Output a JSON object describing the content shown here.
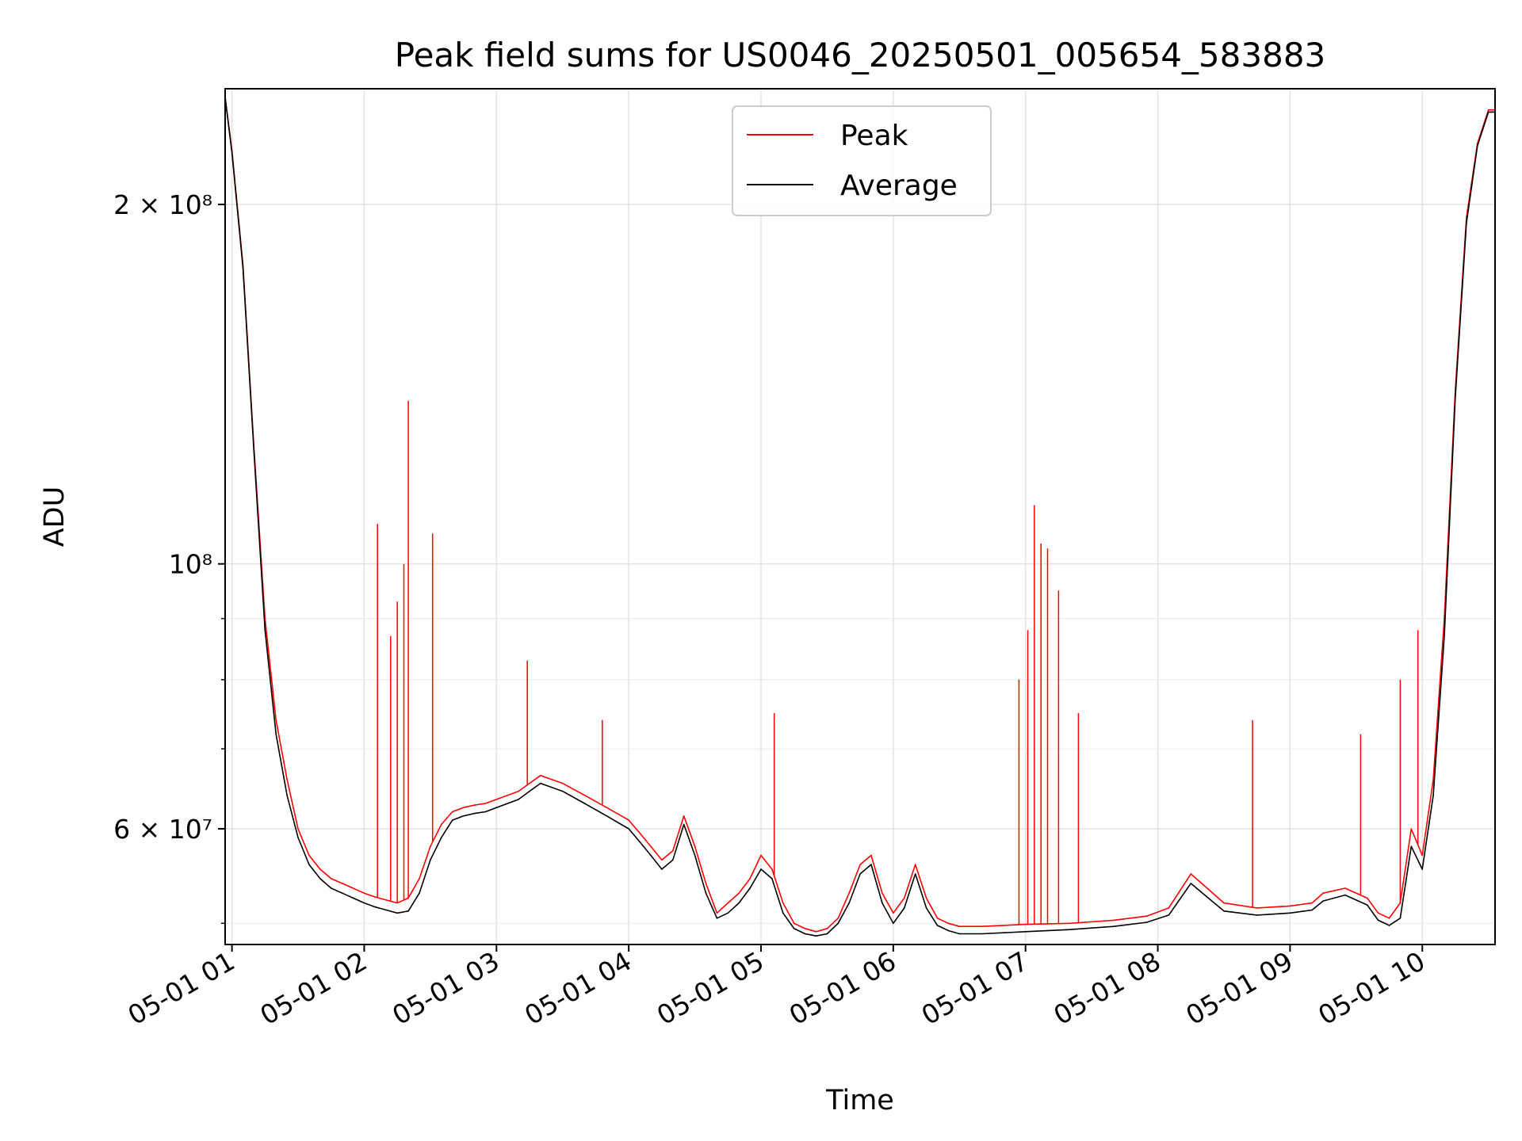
{
  "chart_data": {
    "type": "line",
    "title": "Peak field sums for US0046_20250501_005654_583883",
    "xlabel": "Time",
    "ylabel": "ADU",
    "yscale": "log",
    "ylim": [
      48000000,
      250000000
    ],
    "xlim": [
      "2025-05-01 00:56:54",
      "2025-05-01 10:33:00"
    ],
    "grid": true,
    "legend_position": "top-center",
    "x_ticks": [
      "05-01 01",
      "05-01 02",
      "05-01 03",
      "05-01 04",
      "05-01 05",
      "05-01 06",
      "05-01 07",
      "05-01 08",
      "05-01 09",
      "05-01 10"
    ],
    "y_ticks": [
      {
        "value": 200000000,
        "label": "2 × 10⁸"
      },
      {
        "value": 100000000,
        "label": "10⁸"
      },
      {
        "value": 60000000,
        "label": "6 × 10⁷"
      }
    ],
    "series": [
      {
        "name": "Peak",
        "color": "#ff0000",
        "x": [
          "2025-05-01 00:57",
          "2025-05-01 01:00",
          "2025-05-01 01:05",
          "2025-05-01 01:10",
          "2025-05-01 01:15",
          "2025-05-01 01:20",
          "2025-05-01 01:25",
          "2025-05-01 01:30",
          "2025-05-01 01:35",
          "2025-05-01 01:40",
          "2025-05-01 01:45",
          "2025-05-01 01:50",
          "2025-05-01 01:55",
          "2025-05-01 02:00",
          "2025-05-01 02:05",
          "2025-05-01 02:10",
          "2025-05-01 02:15",
          "2025-05-01 02:20",
          "2025-05-01 02:25",
          "2025-05-01 02:30",
          "2025-05-01 02:35",
          "2025-05-01 02:40",
          "2025-05-01 02:45",
          "2025-05-01 02:50",
          "2025-05-01 02:55",
          "2025-05-01 03:00",
          "2025-05-01 03:10",
          "2025-05-01 03:15",
          "2025-05-01 03:20",
          "2025-05-01 03:30",
          "2025-05-01 03:40",
          "2025-05-01 03:50",
          "2025-05-01 04:00",
          "2025-05-01 04:05",
          "2025-05-01 04:10",
          "2025-05-01 04:15",
          "2025-05-01 04:20",
          "2025-05-01 04:25",
          "2025-05-01 04:30",
          "2025-05-01 04:35",
          "2025-05-01 04:40",
          "2025-05-01 04:45",
          "2025-05-01 04:50",
          "2025-05-01 04:55",
          "2025-05-01 05:00",
          "2025-05-01 05:05",
          "2025-05-01 05:10",
          "2025-05-01 05:15",
          "2025-05-01 05:20",
          "2025-05-01 05:25",
          "2025-05-01 05:30",
          "2025-05-01 05:35",
          "2025-05-01 05:40",
          "2025-05-01 05:45",
          "2025-05-01 05:50",
          "2025-05-01 05:55",
          "2025-05-01 06:00",
          "2025-05-01 06:05",
          "2025-05-01 06:10",
          "2025-05-01 06:15",
          "2025-05-01 06:20",
          "2025-05-01 06:25",
          "2025-05-01 06:30",
          "2025-05-01 06:40",
          "2025-05-01 06:50",
          "2025-05-01 07:00",
          "2025-05-01 07:20",
          "2025-05-01 07:40",
          "2025-05-01 07:55",
          "2025-05-01 08:05",
          "2025-05-01 08:15",
          "2025-05-01 08:30",
          "2025-05-01 08:45",
          "2025-05-01 09:00",
          "2025-05-01 09:10",
          "2025-05-01 09:15",
          "2025-05-01 09:25",
          "2025-05-01 09:35",
          "2025-05-01 09:40",
          "2025-05-01 09:45",
          "2025-05-01 09:50",
          "2025-05-01 09:55",
          "2025-05-01 10:00",
          "2025-05-01 10:05",
          "2025-05-01 10:10",
          "2025-05-01 10:15",
          "2025-05-01 10:20",
          "2025-05-01 10:25",
          "2025-05-01 10:30",
          "2025-05-01 10:33"
        ],
        "values": [
          245000000,
          222000000,
          178000000,
          125000000,
          90000000,
          74000000,
          66000000,
          60000000,
          57000000,
          55500000,
          54500000,
          54000000,
          53500000,
          53000000,
          52600000,
          52300000,
          52000000,
          52500000,
          54500000,
          58000000,
          60500000,
          62000000,
          62500000,
          62800000,
          63000000,
          63500000,
          64500000,
          65500000,
          66500000,
          65500000,
          64000000,
          62500000,
          61000000,
          59500000,
          58000000,
          56500000,
          57500000,
          61500000,
          58000000,
          54000000,
          51000000,
          52000000,
          53000000,
          54500000,
          57000000,
          55500000,
          52000000,
          50000000,
          49500000,
          49200000,
          49500000,
          50500000,
          53000000,
          56000000,
          57000000,
          53000000,
          51000000,
          52500000,
          56000000,
          52500000,
          50500000,
          50000000,
          49700000,
          49700000,
          49800000,
          49900000,
          50000000,
          50300000,
          50700000,
          51500000,
          55000000,
          52000000,
          51500000,
          51700000,
          52000000,
          53000000,
          53500000,
          52500000,
          51000000,
          50500000,
          52000000,
          60000000,
          57000000,
          66000000,
          90000000,
          140000000,
          195000000,
          225000000,
          240000000,
          240000000
        ],
        "spikes": [
          [
            "2025-05-01 02:06",
            108000000
          ],
          [
            "2025-05-01 02:12",
            87000000
          ],
          [
            "2025-05-01 02:15",
            93000000
          ],
          [
            "2025-05-01 02:18",
            100000000
          ],
          [
            "2025-05-01 02:20",
            137000000
          ],
          [
            "2025-05-01 02:31",
            106000000
          ],
          [
            "2025-05-01 03:14",
            83000000
          ],
          [
            "2025-05-01 03:48",
            74000000
          ],
          [
            "2025-05-01 05:06",
            75000000
          ],
          [
            "2025-05-01 06:57",
            80000000
          ],
          [
            "2025-05-01 07:01",
            88000000
          ],
          [
            "2025-05-01 07:04",
            112000000
          ],
          [
            "2025-05-01 07:07",
            104000000
          ],
          [
            "2025-05-01 07:10",
            103000000
          ],
          [
            "2025-05-01 07:15",
            95000000
          ],
          [
            "2025-05-01 07:24",
            75000000
          ],
          [
            "2025-05-01 08:43",
            74000000
          ],
          [
            "2025-05-01 09:32",
            72000000
          ],
          [
            "2025-05-01 09:50",
            80000000
          ],
          [
            "2025-05-01 09:58",
            88000000
          ]
        ]
      },
      {
        "name": "Average",
        "color": "#000000",
        "x": [
          "2025-05-01 00:57",
          "2025-05-01 01:00",
          "2025-05-01 01:05",
          "2025-05-01 01:10",
          "2025-05-01 01:15",
          "2025-05-01 01:20",
          "2025-05-01 01:25",
          "2025-05-01 01:30",
          "2025-05-01 01:35",
          "2025-05-01 01:40",
          "2025-05-01 01:45",
          "2025-05-01 01:50",
          "2025-05-01 01:55",
          "2025-05-01 02:00",
          "2025-05-01 02:05",
          "2025-05-01 02:10",
          "2025-05-01 02:15",
          "2025-05-01 02:20",
          "2025-05-01 02:25",
          "2025-05-01 02:30",
          "2025-05-01 02:35",
          "2025-05-01 02:40",
          "2025-05-01 02:45",
          "2025-05-01 02:50",
          "2025-05-01 02:55",
          "2025-05-01 03:00",
          "2025-05-01 03:10",
          "2025-05-01 03:15",
          "2025-05-01 03:20",
          "2025-05-01 03:30",
          "2025-05-01 03:40",
          "2025-05-01 03:50",
          "2025-05-01 04:00",
          "2025-05-01 04:05",
          "2025-05-01 04:10",
          "2025-05-01 04:15",
          "2025-05-01 04:20",
          "2025-05-01 04:25",
          "2025-05-01 04:30",
          "2025-05-01 04:35",
          "2025-05-01 04:40",
          "2025-05-01 04:45",
          "2025-05-01 04:50",
          "2025-05-01 04:55",
          "2025-05-01 05:00",
          "2025-05-01 05:05",
          "2025-05-01 05:10",
          "2025-05-01 05:15",
          "2025-05-01 05:20",
          "2025-05-01 05:25",
          "2025-05-01 05:30",
          "2025-05-01 05:35",
          "2025-05-01 05:40",
          "2025-05-01 05:45",
          "2025-05-01 05:50",
          "2025-05-01 05:55",
          "2025-05-01 06:00",
          "2025-05-01 06:05",
          "2025-05-01 06:10",
          "2025-05-01 06:15",
          "2025-05-01 06:20",
          "2025-05-01 06:25",
          "2025-05-01 06:30",
          "2025-05-01 06:40",
          "2025-05-01 06:50",
          "2025-05-01 07:00",
          "2025-05-01 07:20",
          "2025-05-01 07:40",
          "2025-05-01 07:55",
          "2025-05-01 08:05",
          "2025-05-01 08:15",
          "2025-05-01 08:30",
          "2025-05-01 08:45",
          "2025-05-01 09:00",
          "2025-05-01 09:10",
          "2025-05-01 09:15",
          "2025-05-01 09:25",
          "2025-05-01 09:35",
          "2025-05-01 09:40",
          "2025-05-01 09:45",
          "2025-05-01 09:50",
          "2025-05-01 09:55",
          "2025-05-01 10:00",
          "2025-05-01 10:05",
          "2025-05-01 10:10",
          "2025-05-01 10:15",
          "2025-05-01 10:20",
          "2025-05-01 10:25",
          "2025-05-01 10:30",
          "2025-05-01 10:33"
        ],
        "values": [
          245000000,
          221000000,
          177000000,
          124000000,
          88000000,
          72000000,
          64000000,
          59000000,
          56000000,
          54500000,
          53500000,
          53000000,
          52500000,
          52000000,
          51600000,
          51300000,
          51000000,
          51200000,
          53000000,
          56500000,
          59000000,
          61000000,
          61500000,
          61800000,
          62000000,
          62500000,
          63500000,
          64500000,
          65500000,
          64500000,
          63000000,
          61500000,
          60000000,
          58500000,
          57000000,
          55500000,
          56500000,
          60500000,
          57000000,
          53000000,
          50500000,
          51000000,
          52000000,
          53500000,
          55500000,
          54500000,
          51000000,
          49500000,
          49000000,
          48800000,
          49000000,
          50000000,
          52000000,
          55000000,
          56000000,
          52000000,
          50000000,
          51500000,
          55000000,
          51500000,
          49800000,
          49300000,
          49000000,
          49000000,
          49100000,
          49200000,
          49400000,
          49700000,
          50100000,
          50800000,
          54000000,
          51200000,
          50800000,
          51000000,
          51300000,
          52200000,
          52800000,
          51800000,
          50300000,
          49800000,
          50500000,
          58000000,
          55500000,
          64000000,
          87000000,
          138000000,
          193000000,
          224000000,
          239000000,
          239000000
        ]
      }
    ]
  }
}
